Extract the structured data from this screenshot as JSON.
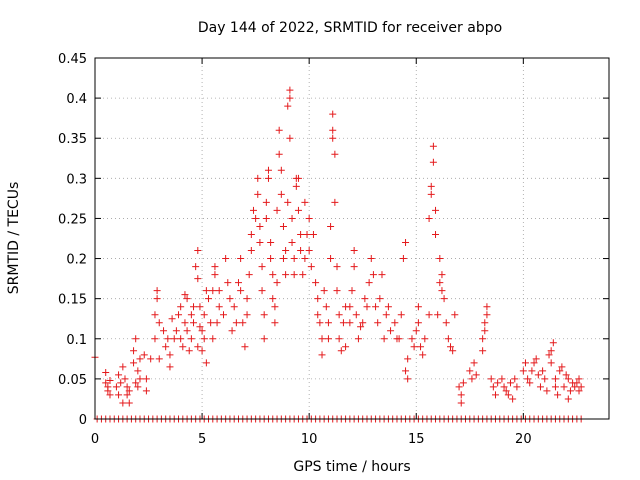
{
  "chart_data": {
    "type": "scatter",
    "title": "Day 144 of 2022, SRMTID for receiver abpo",
    "xlabel": "GPS time / hours",
    "ylabel": "SRMTID / TECUs",
    "xlim": [
      0,
      24
    ],
    "ylim": [
      0,
      0.45
    ],
    "xticks": [
      0,
      5,
      10,
      15,
      20
    ],
    "yticks": [
      0,
      0.05,
      0.1,
      0.15,
      0.2,
      0.25,
      0.3,
      0.35,
      0.4,
      0.45
    ],
    "grid": true,
    "marker": "+",
    "color": "#e41a1c",
    "series": [
      {
        "name": "SRMTID",
        "points": [
          [
            0.0,
            0.077
          ],
          [
            0.5,
            0.058
          ],
          [
            0.5,
            0.045
          ],
          [
            0.6,
            0.04
          ],
          [
            0.6,
            0.035
          ],
          [
            0.7,
            0.048
          ],
          [
            0.7,
            0.03
          ],
          [
            1.0,
            0.04
          ],
          [
            1.1,
            0.055
          ],
          [
            1.1,
            0.03
          ],
          [
            1.2,
            0.045
          ],
          [
            1.3,
            0.065
          ],
          [
            1.3,
            0.02
          ],
          [
            1.4,
            0.05
          ],
          [
            1.5,
            0.04
          ],
          [
            1.5,
            0.03
          ],
          [
            1.6,
            0.02
          ],
          [
            1.6,
            0.035
          ],
          [
            1.8,
            0.07
          ],
          [
            1.8,
            0.085
          ],
          [
            1.9,
            0.1
          ],
          [
            1.9,
            0.045
          ],
          [
            2.0,
            0.06
          ],
          [
            2.0,
            0.04
          ],
          [
            2.1,
            0.075
          ],
          [
            2.1,
            0.05
          ],
          [
            2.3,
            0.08
          ],
          [
            2.4,
            0.05
          ],
          [
            2.4,
            0.035
          ],
          [
            2.6,
            0.075
          ],
          [
            2.8,
            0.1
          ],
          [
            2.8,
            0.13
          ],
          [
            2.9,
            0.15
          ],
          [
            2.9,
            0.16
          ],
          [
            3.0,
            0.12
          ],
          [
            3.0,
            0.075
          ],
          [
            3.2,
            0.11
          ],
          [
            3.3,
            0.09
          ],
          [
            3.4,
            0.1
          ],
          [
            3.5,
            0.08
          ],
          [
            3.5,
            0.065
          ],
          [
            3.6,
            0.125
          ],
          [
            3.7,
            0.1
          ],
          [
            3.8,
            0.11
          ],
          [
            3.9,
            0.13
          ],
          [
            4.0,
            0.14
          ],
          [
            4.0,
            0.1
          ],
          [
            4.1,
            0.09
          ],
          [
            4.2,
            0.12
          ],
          [
            4.2,
            0.155
          ],
          [
            4.3,
            0.11
          ],
          [
            4.3,
            0.15
          ],
          [
            4.4,
            0.085
          ],
          [
            4.5,
            0.13
          ],
          [
            4.5,
            0.1
          ],
          [
            4.6,
            0.14
          ],
          [
            4.6,
            0.12
          ],
          [
            4.7,
            0.19
          ],
          [
            4.8,
            0.21
          ],
          [
            4.8,
            0.175
          ],
          [
            4.8,
            0.09
          ],
          [
            4.9,
            0.14
          ],
          [
            4.9,
            0.115
          ],
          [
            5.0,
            0.11
          ],
          [
            5.0,
            0.085
          ],
          [
            5.1,
            0.1
          ],
          [
            5.1,
            0.13
          ],
          [
            5.2,
            0.16
          ],
          [
            5.2,
            0.07
          ],
          [
            5.3,
            0.15
          ],
          [
            5.4,
            0.12
          ],
          [
            5.5,
            0.16
          ],
          [
            5.5,
            0.1
          ],
          [
            5.6,
            0.19
          ],
          [
            5.6,
            0.18
          ],
          [
            5.7,
            0.12
          ],
          [
            5.8,
            0.14
          ],
          [
            5.8,
            0.16
          ],
          [
            6.0,
            0.13
          ],
          [
            6.1,
            0.2
          ],
          [
            6.2,
            0.17
          ],
          [
            6.3,
            0.15
          ],
          [
            6.4,
            0.11
          ],
          [
            6.5,
            0.14
          ],
          [
            6.6,
            0.12
          ],
          [
            6.7,
            0.17
          ],
          [
            6.8,
            0.2
          ],
          [
            6.8,
            0.16
          ],
          [
            6.9,
            0.12
          ],
          [
            7.0,
            0.09
          ],
          [
            7.1,
            0.15
          ],
          [
            7.1,
            0.13
          ],
          [
            7.2,
            0.18
          ],
          [
            7.3,
            0.23
          ],
          [
            7.3,
            0.21
          ],
          [
            7.4,
            0.26
          ],
          [
            7.5,
            0.25
          ],
          [
            7.6,
            0.3
          ],
          [
            7.6,
            0.28
          ],
          [
            7.7,
            0.24
          ],
          [
            7.7,
            0.22
          ],
          [
            7.8,
            0.19
          ],
          [
            7.8,
            0.16
          ],
          [
            7.9,
            0.13
          ],
          [
            7.9,
            0.1
          ],
          [
            8.0,
            0.27
          ],
          [
            8.0,
            0.25
          ],
          [
            8.1,
            0.31
          ],
          [
            8.1,
            0.3
          ],
          [
            8.2,
            0.22
          ],
          [
            8.2,
            0.2
          ],
          [
            8.3,
            0.18
          ],
          [
            8.3,
            0.15
          ],
          [
            8.4,
            0.12
          ],
          [
            8.4,
            0.14
          ],
          [
            8.5,
            0.17
          ],
          [
            8.5,
            0.26
          ],
          [
            8.6,
            0.33
          ],
          [
            8.6,
            0.36
          ],
          [
            8.7,
            0.31
          ],
          [
            8.7,
            0.28
          ],
          [
            8.8,
            0.24
          ],
          [
            8.8,
            0.2
          ],
          [
            8.9,
            0.18
          ],
          [
            8.9,
            0.21
          ],
          [
            9.0,
            0.27
          ],
          [
            9.0,
            0.39
          ],
          [
            9.1,
            0.41
          ],
          [
            9.1,
            0.4
          ],
          [
            9.1,
            0.35
          ],
          [
            9.2,
            0.25
          ],
          [
            9.2,
            0.22
          ],
          [
            9.3,
            0.2
          ],
          [
            9.3,
            0.18
          ],
          [
            9.4,
            0.3
          ],
          [
            9.4,
            0.29
          ],
          [
            9.5,
            0.3
          ],
          [
            9.5,
            0.26
          ],
          [
            9.6,
            0.23
          ],
          [
            9.6,
            0.21
          ],
          [
            9.7,
            0.18
          ],
          [
            9.8,
            0.2
          ],
          [
            9.8,
            0.27
          ],
          [
            9.9,
            0.23
          ],
          [
            10.0,
            0.25
          ],
          [
            10.0,
            0.21
          ],
          [
            10.1,
            0.19
          ],
          [
            10.2,
            0.23
          ],
          [
            10.3,
            0.17
          ],
          [
            10.4,
            0.15
          ],
          [
            10.4,
            0.13
          ],
          [
            10.5,
            0.12
          ],
          [
            10.6,
            0.08
          ],
          [
            10.6,
            0.1
          ],
          [
            10.7,
            0.16
          ],
          [
            10.8,
            0.14
          ],
          [
            10.9,
            0.12
          ],
          [
            10.9,
            0.1
          ],
          [
            11.0,
            0.24
          ],
          [
            11.0,
            0.2
          ],
          [
            11.1,
            0.38
          ],
          [
            11.1,
            0.36
          ],
          [
            11.1,
            0.35
          ],
          [
            11.2,
            0.33
          ],
          [
            11.2,
            0.27
          ],
          [
            11.3,
            0.19
          ],
          [
            11.3,
            0.16
          ],
          [
            11.4,
            0.13
          ],
          [
            11.4,
            0.1
          ],
          [
            11.5,
            0.085
          ],
          [
            11.6,
            0.12
          ],
          [
            11.7,
            0.14
          ],
          [
            11.7,
            0.09
          ],
          [
            11.9,
            0.12
          ],
          [
            11.9,
            0.14
          ],
          [
            12.0,
            0.16
          ],
          [
            12.1,
            0.19
          ],
          [
            12.1,
            0.21
          ],
          [
            12.2,
            0.13
          ],
          [
            12.3,
            0.1
          ],
          [
            12.4,
            0.115
          ],
          [
            12.5,
            0.12
          ],
          [
            12.6,
            0.15
          ],
          [
            12.7,
            0.14
          ],
          [
            12.8,
            0.17
          ],
          [
            12.9,
            0.2
          ],
          [
            13.0,
            0.18
          ],
          [
            13.1,
            0.14
          ],
          [
            13.2,
            0.12
          ],
          [
            13.3,
            0.15
          ],
          [
            13.4,
            0.18
          ],
          [
            13.5,
            0.1
          ],
          [
            13.6,
            0.13
          ],
          [
            13.7,
            0.14
          ],
          [
            13.8,
            0.11
          ],
          [
            14.0,
            0.12
          ],
          [
            14.1,
            0.1
          ],
          [
            14.2,
            0.1
          ],
          [
            14.3,
            0.13
          ],
          [
            14.4,
            0.2
          ],
          [
            14.5,
            0.22
          ],
          [
            14.5,
            0.06
          ],
          [
            14.6,
            0.075
          ],
          [
            14.6,
            0.05
          ],
          [
            14.8,
            0.1
          ],
          [
            14.9,
            0.09
          ],
          [
            15.0,
            0.11
          ],
          [
            15.1,
            0.14
          ],
          [
            15.1,
            0.12
          ],
          [
            15.2,
            0.09
          ],
          [
            15.3,
            0.08
          ],
          [
            15.4,
            0.1
          ],
          [
            15.6,
            0.13
          ],
          [
            15.6,
            0.25
          ],
          [
            15.7,
            0.28
          ],
          [
            15.7,
            0.29
          ],
          [
            15.8,
            0.32
          ],
          [
            15.8,
            0.34
          ],
          [
            15.9,
            0.26
          ],
          [
            15.9,
            0.23
          ],
          [
            16.0,
            0.13
          ],
          [
            16.1,
            0.17
          ],
          [
            16.1,
            0.2
          ],
          [
            16.2,
            0.18
          ],
          [
            16.2,
            0.16
          ],
          [
            16.3,
            0.15
          ],
          [
            16.4,
            0.12
          ],
          [
            16.5,
            0.1
          ],
          [
            16.6,
            0.09
          ],
          [
            16.7,
            0.085
          ],
          [
            16.8,
            0.13
          ],
          [
            17.0,
            0.04
          ],
          [
            17.1,
            0.03
          ],
          [
            17.1,
            0.02
          ],
          [
            17.2,
            0.045
          ],
          [
            17.5,
            0.06
          ],
          [
            17.6,
            0.05
          ],
          [
            17.7,
            0.07
          ],
          [
            17.8,
            0.055
          ],
          [
            18.1,
            0.085
          ],
          [
            18.1,
            0.1
          ],
          [
            18.2,
            0.12
          ],
          [
            18.2,
            0.11
          ],
          [
            18.3,
            0.14
          ],
          [
            18.3,
            0.13
          ],
          [
            18.5,
            0.05
          ],
          [
            18.6,
            0.04
          ],
          [
            18.7,
            0.03
          ],
          [
            18.8,
            0.045
          ],
          [
            19.0,
            0.05
          ],
          [
            19.1,
            0.04
          ],
          [
            19.2,
            0.035
          ],
          [
            19.3,
            0.03
          ],
          [
            19.4,
            0.045
          ],
          [
            19.5,
            0.025
          ],
          [
            19.6,
            0.05
          ],
          [
            19.7,
            0.04
          ],
          [
            20.0,
            0.06
          ],
          [
            20.1,
            0.07
          ],
          [
            20.2,
            0.05
          ],
          [
            20.3,
            0.045
          ],
          [
            20.4,
            0.06
          ],
          [
            20.5,
            0.07
          ],
          [
            20.6,
            0.075
          ],
          [
            20.7,
            0.055
          ],
          [
            20.8,
            0.04
          ],
          [
            20.9,
            0.06
          ],
          [
            21.0,
            0.05
          ],
          [
            21.1,
            0.035
          ],
          [
            21.2,
            0.08
          ],
          [
            21.3,
            0.085
          ],
          [
            21.3,
            0.07
          ],
          [
            21.4,
            0.095
          ],
          [
            21.5,
            0.04
          ],
          [
            21.5,
            0.05
          ],
          [
            21.6,
            0.03
          ],
          [
            21.7,
            0.06
          ],
          [
            21.8,
            0.065
          ],
          [
            21.9,
            0.04
          ],
          [
            22.0,
            0.055
          ],
          [
            22.1,
            0.05
          ],
          [
            22.1,
            0.025
          ],
          [
            22.2,
            0.035
          ],
          [
            22.3,
            0.045
          ],
          [
            22.4,
            0.04
          ],
          [
            22.5,
            0.045
          ],
          [
            22.6,
            0.05
          ],
          [
            22.6,
            0.035
          ],
          [
            22.7,
            0.04
          ]
        ]
      }
    ],
    "baseline_markers": {
      "description": "row of markers at zero along the bottom axis",
      "from": 0.1,
      "to": 22.8,
      "step": 0.2,
      "value": 0
    }
  }
}
